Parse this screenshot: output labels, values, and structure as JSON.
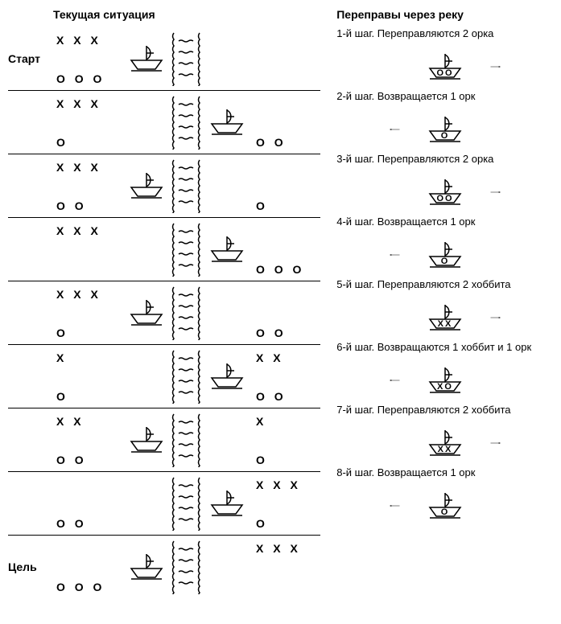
{
  "colors": {
    "stroke": "#000000",
    "bg": "#ffffff"
  },
  "stroke_width": {
    "thin": 1.5,
    "thick": 2
  },
  "titles": {
    "left": "Текущая ситуация",
    "right": "Переправы через реку"
  },
  "labels": {
    "start": "Старт",
    "goal": "Цель"
  },
  "hobbit_glyph": "X",
  "orc_glyph": "O",
  "states": [
    {
      "label": "start",
      "left_h": 3,
      "left_o": 3,
      "right_h": 0,
      "right_o": 0,
      "boat_side": "left"
    },
    {
      "label": "",
      "left_h": 3,
      "left_o": 1,
      "right_h": 0,
      "right_o": 2,
      "boat_side": "right"
    },
    {
      "label": "",
      "left_h": 3,
      "left_o": 2,
      "right_h": 0,
      "right_o": 1,
      "boat_side": "left"
    },
    {
      "label": "",
      "left_h": 3,
      "left_o": 0,
      "right_h": 0,
      "right_o": 3,
      "boat_side": "right"
    },
    {
      "label": "",
      "left_h": 3,
      "left_o": 1,
      "right_h": 0,
      "right_o": 2,
      "boat_side": "left"
    },
    {
      "label": "",
      "left_h": 1,
      "left_o": 1,
      "right_h": 2,
      "right_o": 2,
      "boat_side": "right"
    },
    {
      "label": "",
      "left_h": 2,
      "left_o": 2,
      "right_h": 1,
      "right_o": 1,
      "boat_side": "left"
    },
    {
      "label": "",
      "left_h": 0,
      "left_o": 2,
      "right_h": 3,
      "right_o": 1,
      "boat_side": "right"
    },
    {
      "label": "goal",
      "left_h": 0,
      "left_o": 3,
      "right_h": 3,
      "right_o": 0,
      "boat_side": "left"
    }
  ],
  "steps": [
    {
      "text": "1-й шаг. Переправляются 2 орка",
      "cargo": "OO",
      "dir": "right"
    },
    {
      "text": "2-й шаг. Возвращается 1 орк",
      "cargo": "O",
      "dir": "left"
    },
    {
      "text": "3-й шаг. Переправляются 2 орка",
      "cargo": "OO",
      "dir": "right"
    },
    {
      "text": "4-й шаг. Возвращается 1 орк",
      "cargo": "O",
      "dir": "left"
    },
    {
      "text": "5-й шаг. Переправляются 2 хоббита",
      "cargo": "XX",
      "dir": "right"
    },
    {
      "text": "6-й шаг. Возвращаются 1 хоббит и 1 орк",
      "cargo": "XO",
      "dir": "left"
    },
    {
      "text": "7-й шаг. Переправляются 2 хоббита",
      "cargo": "XX",
      "dir": "right"
    },
    {
      "text": "8-й шаг. Возвращается 1 орк",
      "cargo": "O",
      "dir": "left"
    }
  ]
}
